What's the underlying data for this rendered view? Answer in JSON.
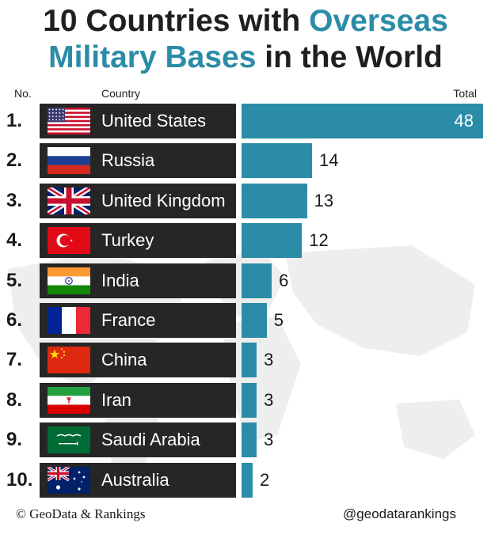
{
  "title": {
    "part1": "10 Countries with ",
    "highlight1": "Overseas",
    "highlight2": "Military Bases",
    "part2": " in the World"
  },
  "headers": {
    "no": "No.",
    "country": "Country",
    "total": "Total"
  },
  "footer": {
    "left": "© GeoData & Rankings",
    "right": "@geodatarankings"
  },
  "colors": {
    "bar": "#2b8ca8",
    "label_bg": "#262626",
    "title_highlight": "#2b8ca8"
  },
  "chart_data": {
    "type": "bar",
    "orientation": "horizontal",
    "categories": [
      "United States",
      "Russia",
      "United Kingdom",
      "Turkey",
      "India",
      "France",
      "China",
      "Iran",
      "Saudi Arabia",
      "Australia"
    ],
    "ranks": [
      "1.",
      "2.",
      "3.",
      "4.",
      "5.",
      "6.",
      "7.",
      "8.",
      "9.",
      "10."
    ],
    "values": [
      48,
      14,
      13,
      12,
      6,
      5,
      3,
      3,
      3,
      2
    ],
    "flags": [
      "us-flag-icon",
      "russia-flag-icon",
      "uk-flag-icon",
      "turkey-flag-icon",
      "india-flag-icon",
      "france-flag-icon",
      "china-flag-icon",
      "iran-flag-icon",
      "saudi-arabia-flag-icon",
      "australia-flag-icon"
    ]
  }
}
